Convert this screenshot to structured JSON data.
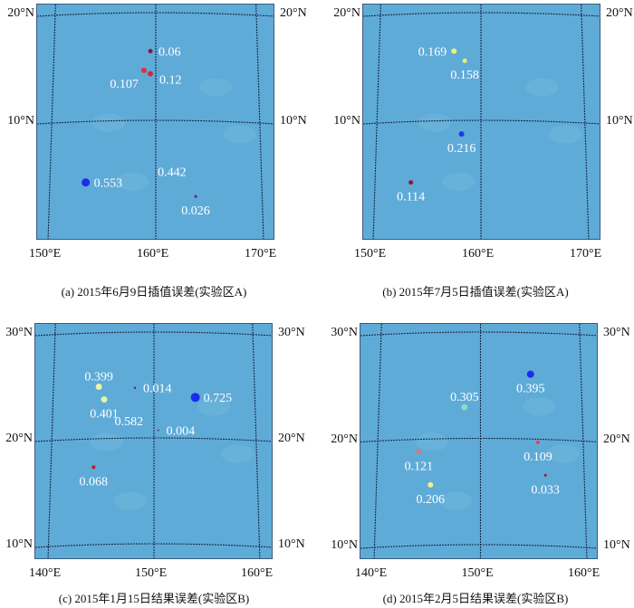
{
  "panels": [
    {
      "id": "a",
      "caption": "(a) 2015年6月9日插值误差(实验区A)",
      "lat_ticks": [
        {
          "lat": 20,
          "label": "20°N"
        },
        {
          "lat": 10,
          "label": "10°N"
        }
      ],
      "lon_ticks": [
        {
          "lon": 150,
          "label": "150°E"
        },
        {
          "lon": 160,
          "label": "160°E"
        },
        {
          "lon": 170,
          "label": "170°E"
        }
      ],
      "points": [
        {
          "value": "0.06",
          "lon": 159.5,
          "lat": 16.6,
          "color": "#8b1a3a",
          "size": 2.5,
          "label_pos": "right"
        },
        {
          "value": "0.107",
          "lon": 158.9,
          "lat": 14.8,
          "color": "#e03040",
          "size": 3,
          "label_pos": "below-left"
        },
        {
          "value": "0.12",
          "lon": 159.5,
          "lat": 14.5,
          "color": "#d02840",
          "size": 3,
          "label_pos": "right-below"
        },
        {
          "value": "0.553",
          "lon": 153.5,
          "lat": 4.4,
          "color": "#1a2ee8",
          "size": 4.5,
          "label_pos": "right"
        },
        {
          "value": "0.442",
          "lon": 161.5,
          "lat": 5.4,
          "color": "#5fabd8",
          "size": 0,
          "label_pos": "center"
        },
        {
          "value": "0.026",
          "lon": 163.7,
          "lat": 3.1,
          "color": "#6a1a5a",
          "size": 1.5,
          "label_pos": "below"
        }
      ]
    },
    {
      "id": "b",
      "caption": "(b) 2015年7月5日插值误差(实验区A)",
      "lat_ticks": [
        {
          "lat": 20,
          "label": "20°N"
        },
        {
          "lat": 10,
          "label": "10°N"
        }
      ],
      "lon_ticks": [
        {
          "lon": 150,
          "label": "150°E"
        },
        {
          "lon": 160,
          "label": "160°E"
        },
        {
          "lon": 170,
          "label": "170°E"
        }
      ],
      "points": [
        {
          "value": "0.169",
          "lon": 157.5,
          "lat": 16.6,
          "color": "#eef07a",
          "size": 3,
          "label_pos": "left"
        },
        {
          "value": "0.158",
          "lon": 158.5,
          "lat": 15.7,
          "color": "#f0e870",
          "size": 2.5,
          "label_pos": "below"
        },
        {
          "value": "0.216",
          "lon": 158.2,
          "lat": 8.9,
          "color": "#1a3ae8",
          "size": 3,
          "label_pos": "below"
        },
        {
          "value": "0.114",
          "lon": 153.5,
          "lat": 4.4,
          "color": "#8b1a3a",
          "size": 2.5,
          "label_pos": "below"
        }
      ]
    },
    {
      "id": "c",
      "caption": "(c) 2015年1月15日结果误差(实验区B)",
      "lat_ticks": [
        {
          "lat": 30,
          "label": "30°N"
        },
        {
          "lat": 20,
          "label": "20°N"
        },
        {
          "lat": 10,
          "label": "10°N"
        }
      ],
      "lon_ticks": [
        {
          "lon": 140,
          "label": "140°E"
        },
        {
          "lon": 150,
          "label": "150°E"
        },
        {
          "lon": 160,
          "label": "160°E"
        }
      ],
      "points": [
        {
          "value": "0.399",
          "lon": 144.8,
          "lat": 25.0,
          "color": "#eef5a0",
          "size": 3.5,
          "label_pos": "above"
        },
        {
          "value": "0.401",
          "lon": 145.3,
          "lat": 23.8,
          "color": "#e8f5a0",
          "size": 3.5,
          "label_pos": "below"
        },
        {
          "value": "0.014",
          "lon": 148.2,
          "lat": 24.9,
          "color": "#5a1a6a",
          "size": 1.2,
          "label_pos": "right"
        },
        {
          "value": "0.725",
          "lon": 153.9,
          "lat": 24.0,
          "color": "#1a2ee8",
          "size": 5,
          "label_pos": "right"
        },
        {
          "value": "0.582",
          "lon": 149.5,
          "lat": 23.0,
          "color": "#5fabd8",
          "size": 0,
          "label_pos": "below-left"
        },
        {
          "value": "0.004",
          "lon": 150.4,
          "lat": 20.9,
          "color": "#5a2a8a",
          "size": 1,
          "label_pos": "right"
        },
        {
          "value": "0.068",
          "lon": 144.3,
          "lat": 17.4,
          "color": "#c01830",
          "size": 2,
          "label_pos": "below"
        }
      ]
    },
    {
      "id": "d",
      "caption": "(d) 2015年2月5日结果误差(实验区B)",
      "lat_ticks": [
        {
          "lat": 30,
          "label": "30°N"
        },
        {
          "lat": 20,
          "label": "20°N"
        },
        {
          "lat": 10,
          "label": "10°N"
        }
      ],
      "lon_ticks": [
        {
          "lon": 140,
          "label": "140°E"
        },
        {
          "lon": 150,
          "label": "150°E"
        },
        {
          "lon": 160,
          "label": "160°E"
        }
      ],
      "points": [
        {
          "value": "0.395",
          "lon": 154.7,
          "lat": 26.2,
          "color": "#1a2ee8",
          "size": 4,
          "label_pos": "below"
        },
        {
          "value": "0.305",
          "lon": 148.5,
          "lat": 23.1,
          "color": "#8fd8c8",
          "size": 3.5,
          "label_pos": "above"
        },
        {
          "value": "0.121",
          "lon": 144.2,
          "lat": 18.9,
          "color": "#f07060",
          "size": 2.5,
          "label_pos": "below"
        },
        {
          "value": "0.109",
          "lon": 155.4,
          "lat": 19.8,
          "color": "#e84050",
          "size": 2,
          "label_pos": "below"
        },
        {
          "value": "0.206",
          "lon": 145.3,
          "lat": 15.8,
          "color": "#f0f090",
          "size": 3,
          "label_pos": "below"
        },
        {
          "value": "0.033",
          "lon": 156.1,
          "lat": 16.7,
          "color": "#8b1a3a",
          "size": 1.5,
          "label_pos": "below"
        }
      ]
    }
  ]
}
